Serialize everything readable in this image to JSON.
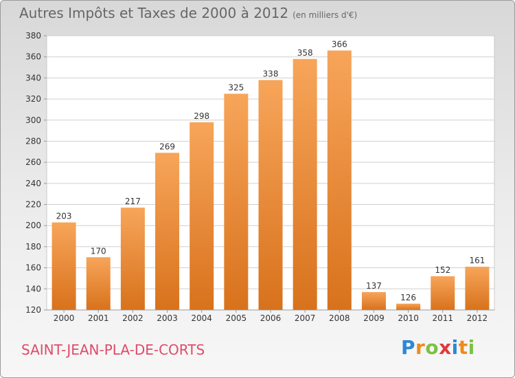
{
  "title": "Autres Impôts et Taxes de 2000 à 2012",
  "unit": "(en milliers d'€)",
  "place": "SAINT-JEAN-PLA-DE-CORTS",
  "logo": {
    "letters": [
      "P",
      "r",
      "o",
      "x",
      "i",
      "t",
      "i"
    ],
    "colors": [
      "#2a88d8",
      "#f08a1a",
      "#7cc242",
      "#e03a3a",
      "#2a88d8",
      "#f08a1a",
      "#7cc242"
    ]
  },
  "colors": {
    "bar_light": "#f7a55a",
    "bar_dark": "#d8721c",
    "title": "#666666",
    "place": "#e04a6a"
  },
  "chart_data": {
    "type": "bar",
    "title": "Autres Impôts et Taxes de 2000 à 2012",
    "categories": [
      "2000",
      "2001",
      "2002",
      "2003",
      "2004",
      "2005",
      "2006",
      "2007",
      "2008",
      "2009",
      "2010",
      "2011",
      "2012"
    ],
    "values": [
      203,
      170,
      217,
      269,
      298,
      325,
      338,
      358,
      366,
      137,
      126,
      152,
      161
    ],
    "ylim": [
      120,
      380
    ],
    "yticks": [
      120,
      140,
      160,
      180,
      200,
      220,
      240,
      260,
      280,
      300,
      320,
      340,
      360,
      380
    ],
    "grid": true,
    "xlabel": "",
    "ylabel": ""
  }
}
